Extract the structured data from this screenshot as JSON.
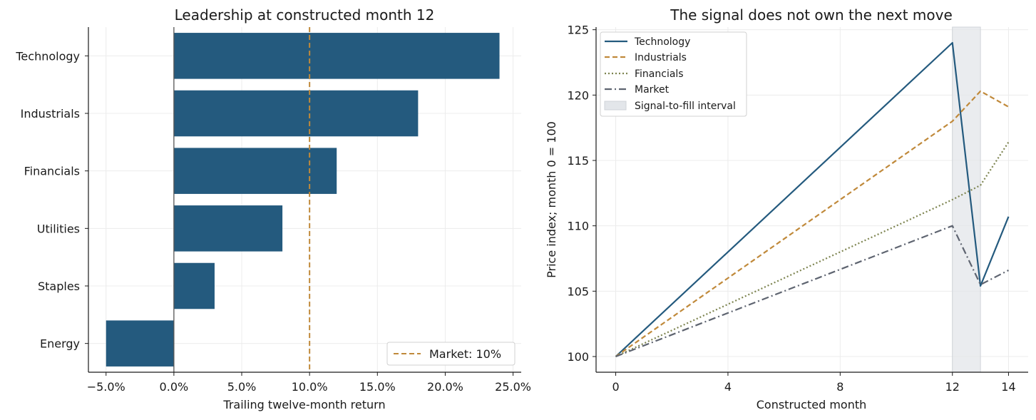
{
  "chart_data": [
    {
      "type": "bar",
      "orientation": "horizontal",
      "title": "Leadership at constructed month 12",
      "xlabel": "Trailing twelve-month return",
      "ylabel": "",
      "categories": [
        "Technology",
        "Industrials",
        "Financials",
        "Utilities",
        "Staples",
        "Energy"
      ],
      "values": [
        0.24,
        0.18,
        0.12,
        0.08,
        0.03,
        -0.05
      ],
      "xlim": [
        -0.063,
        0.256
      ],
      "xticks": [
        -0.05,
        0,
        0.05,
        0.1,
        0.15,
        0.2,
        0.25
      ],
      "xtick_labels": [
        "−5.0%",
        "0.0%",
        "5.0%",
        "10.0%",
        "15.0%",
        "20.0%",
        "25.0%"
      ],
      "reference_line": {
        "value": 0.1,
        "label": "Market: 10%",
        "color": "#c0893a"
      },
      "bar_color": "#245a7e",
      "grid": true,
      "legend_position": "bottom-right"
    },
    {
      "type": "line",
      "title": "The signal does not own the next move",
      "xlabel": "Constructed month",
      "ylabel": "Price index; month 0 = 100",
      "xlim": [
        -0.7,
        14.7
      ],
      "ylim": [
        98.8,
        125.2
      ],
      "xticks": [
        0,
        4,
        8,
        12,
        14
      ],
      "yticks": [
        100,
        105,
        110,
        115,
        120,
        125
      ],
      "shaded_interval": {
        "x0": 12,
        "x1": 13,
        "label": "Signal-to-fill interval",
        "color": "#e3e6ea"
      },
      "series": [
        {
          "name": "Technology",
          "style": "solid",
          "color": "#245a7e",
          "x": [
            0,
            12,
            13,
            14
          ],
          "y": [
            100,
            124,
            105.4,
            110.7
          ]
        },
        {
          "name": "Industrials",
          "style": "dashed",
          "color": "#c0893a",
          "x": [
            0,
            12,
            13,
            14
          ],
          "y": [
            100,
            118,
            120.3,
            119.1
          ]
        },
        {
          "name": "Financials",
          "style": "dotted",
          "color": "#7d8450",
          "x": [
            0,
            12,
            13,
            14
          ],
          "y": [
            100,
            112,
            113.1,
            116.4
          ]
        },
        {
          "name": "Market",
          "style": "dashdot",
          "color": "#5e6470",
          "x": [
            0,
            12,
            13,
            14
          ],
          "y": [
            100,
            110,
            105.5,
            106.6
          ]
        }
      ],
      "grid": true,
      "legend_position": "top-left"
    }
  ]
}
